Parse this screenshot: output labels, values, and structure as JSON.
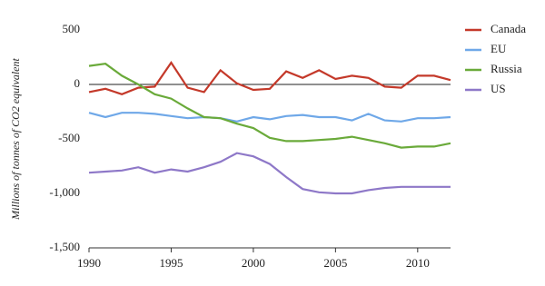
{
  "chart_data": {
    "type": "line",
    "y_label": "Millions of tonnes of CO2 equivalent",
    "x": [
      1990,
      1991,
      1992,
      1993,
      1994,
      1995,
      1996,
      1997,
      1998,
      1999,
      2000,
      2001,
      2002,
      2003,
      2004,
      2005,
      2006,
      2007,
      2008,
      2009,
      2010,
      2011,
      2012
    ],
    "series": [
      {
        "name": "Canada",
        "color": "#c4392a",
        "values": [
          -70,
          -40,
          -90,
          -30,
          -20,
          200,
          -30,
          -70,
          130,
          10,
          -50,
          -40,
          120,
          60,
          130,
          50,
          80,
          60,
          -20,
          -30,
          80,
          80,
          40
        ]
      },
      {
        "name": "EU",
        "color": "#6fa8e8",
        "values": [
          -260,
          -300,
          -260,
          -260,
          -270,
          -290,
          -310,
          -300,
          -310,
          -340,
          -300,
          -320,
          -290,
          -280,
          -300,
          -300,
          -330,
          -270,
          -330,
          -340,
          -310,
          -310,
          -300
        ]
      },
      {
        "name": "Russia",
        "color": "#6aaa3a",
        "values": [
          170,
          190,
          80,
          0,
          -90,
          -130,
          -220,
          -300,
          -310,
          -360,
          -400,
          -490,
          -520,
          -520,
          -510,
          -500,
          -480,
          -510,
          -540,
          -580,
          -570,
          -570,
          -540
        ]
      },
      {
        "name": "US",
        "color": "#8e78c8",
        "values": [
          -810,
          -800,
          -790,
          -760,
          -810,
          -780,
          -800,
          -760,
          -710,
          -630,
          -660,
          -730,
          -850,
          -960,
          -990,
          -1000,
          -1000,
          -970,
          -950,
          -940,
          -940,
          -940,
          -940
        ]
      }
    ],
    "xlim": [
      1990,
      2012
    ],
    "xticks": [
      1990,
      1995,
      2000,
      2005,
      2010
    ],
    "ylim": [
      -1500,
      500
    ],
    "yticks": [
      500,
      0,
      -500,
      {
        "value": -1000,
        "label": "-1,000"
      },
      {
        "value": -1500,
        "label": "-1,500"
      }
    ],
    "zero_line": true,
    "legend": "right"
  }
}
